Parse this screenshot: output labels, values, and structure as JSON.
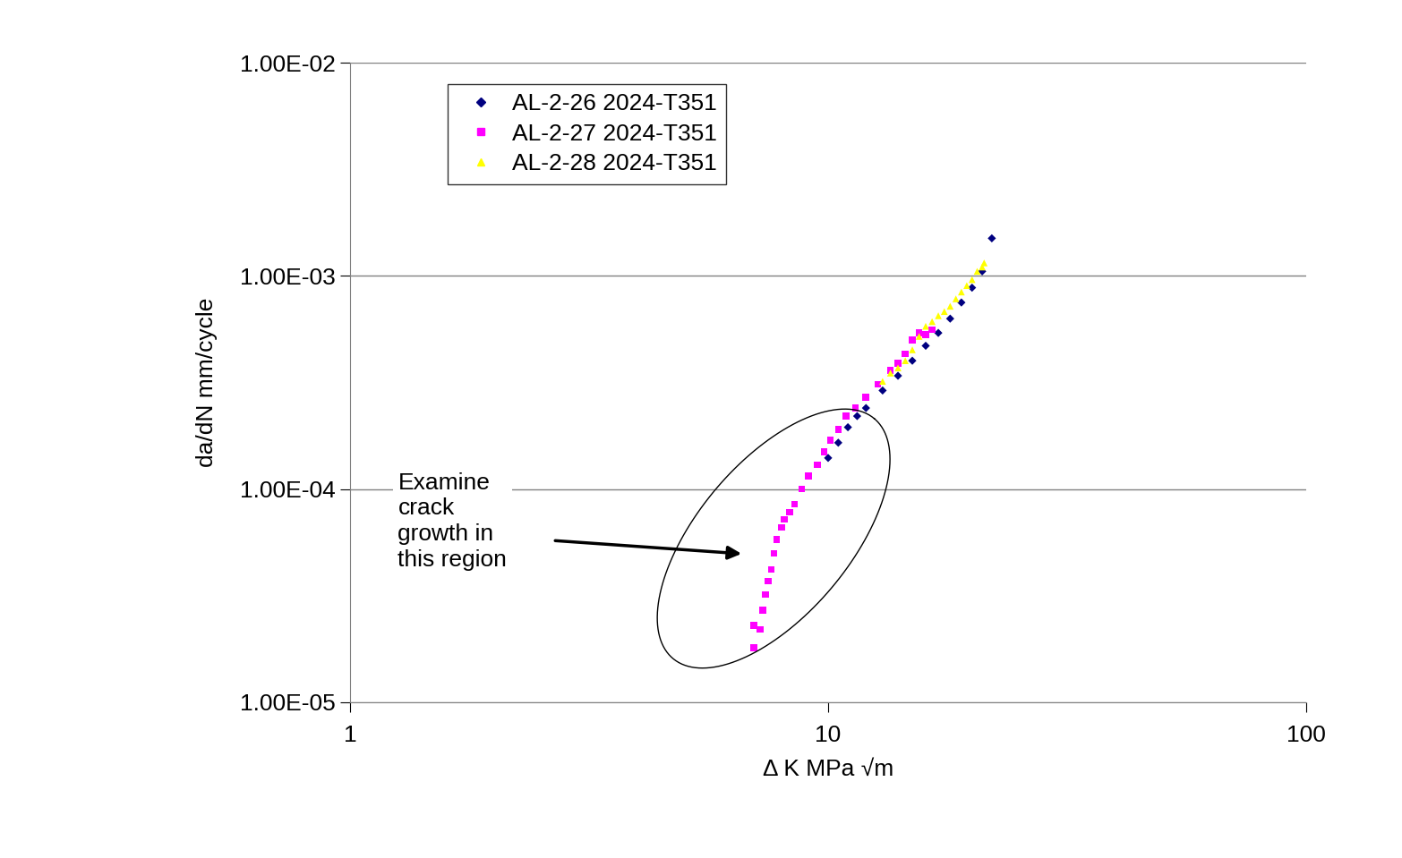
{
  "chart_data": {
    "type": "scatter",
    "xlabel": "Δ K MPa √m",
    "ylabel": "da/dN mm/cycle",
    "log": true,
    "grid": "y",
    "legend": "upper left",
    "xlim": [
      1,
      100
    ],
    "xticks": [
      1,
      10,
      100
    ],
    "ylim": [
      1e-05,
      0.01
    ],
    "yticks": [
      {
        "value": 1e-05,
        "label": "1.00E-05"
      },
      {
        "value": 0.0001,
        "label": "1.00E-04"
      },
      {
        "value": 0.001,
        "label": "1.00E-03"
      },
      {
        "value": 0.01,
        "label": "1.00E-02"
      }
    ],
    "annotation": "Examine\ncrack\ngrowth in\nthis region",
    "series": [
      {
        "name": "AL-2-26 2024-T351",
        "color": "#000080",
        "marker": "diamond",
        "x": [
          10.0,
          10.5,
          11.0,
          11.5,
          12.0,
          13.0,
          14.0,
          15.0,
          16.0,
          17.0,
          18.0,
          19.0,
          20.0,
          21.0,
          22.0
        ],
        "values": [
          0.00014,
          0.000165,
          0.000195,
          0.00022,
          0.00024,
          0.00029,
          0.00034,
          0.0004,
          0.00047,
          0.00054,
          0.00063,
          0.00075,
          0.00088,
          0.00105,
          0.0015
        ]
      },
      {
        "name": "AL-2-27 2024-T351",
        "color": "#ff00ff",
        "marker": "square",
        "x": [
          7.0,
          7.0,
          7.2,
          7.3,
          7.4,
          7.5,
          7.6,
          7.7,
          7.8,
          8.0,
          8.1,
          8.3,
          8.5,
          8.8,
          9.1,
          9.5,
          9.8,
          10.1,
          10.5,
          10.9,
          11.4,
          12.0,
          12.7,
          13.5,
          14.0,
          14.5,
          15.0,
          15.5,
          16.0,
          16.5
        ],
        "values": [
          1.8e-05,
          2.3e-05,
          2.2e-05,
          2.7e-05,
          3.2e-05,
          3.7e-05,
          4.2e-05,
          5e-05,
          5.8e-05,
          6.6e-05,
          7.2e-05,
          7.8e-05,
          8.5e-05,
          0.0001,
          0.000115,
          0.00013,
          0.00015,
          0.00017,
          0.00019,
          0.00022,
          0.00024,
          0.00027,
          0.00031,
          0.00036,
          0.00039,
          0.00043,
          0.0005,
          0.00054,
          0.00053,
          0.00056
        ]
      },
      {
        "name": "AL-2-28 2024-T351",
        "color": "#ffff00",
        "marker": "triangle",
        "x": [
          13.0,
          13.5,
          14.0,
          14.5,
          15.0,
          15.5,
          16.0,
          16.5,
          17.0,
          17.5,
          18.0,
          18.5,
          19.0,
          19.5,
          20.0,
          20.5,
          21.0,
          21.2
        ],
        "values": [
          0.00032,
          0.00035,
          0.00037,
          0.0004,
          0.00045,
          0.00052,
          0.00058,
          0.00061,
          0.00065,
          0.00068,
          0.00072,
          0.00078,
          0.00084,
          0.0009,
          0.00096,
          0.00105,
          0.0011,
          0.00115
        ]
      }
    ]
  }
}
